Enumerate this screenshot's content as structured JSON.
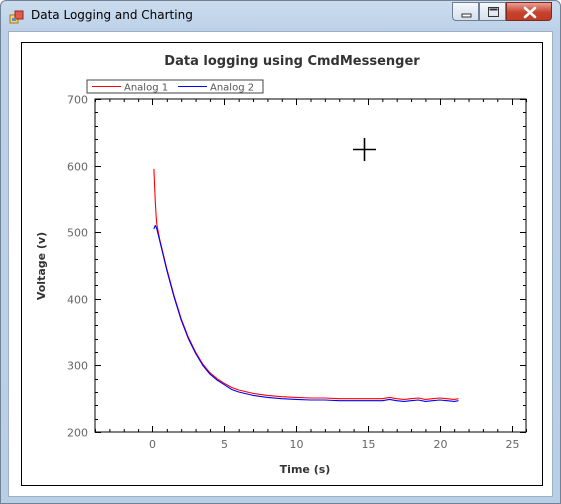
{
  "window": {
    "title": "Data Logging and Charting",
    "app_icon": "windows-forms-app-icon",
    "controls": [
      "minimize-icon",
      "maximize-icon",
      "close-icon"
    ]
  },
  "cursor": {
    "icon": "crosshair-cursor-icon"
  },
  "chart_data": {
    "type": "line",
    "title": "Data logging using CmdMessenger",
    "xlabel": "Time (s)",
    "ylabel": "Voltage (v)",
    "xlim": [
      -4,
      26
    ],
    "ylim": [
      200,
      700
    ],
    "xticks": [
      0,
      5,
      10,
      15,
      20,
      25
    ],
    "yticks": [
      200,
      300,
      400,
      500,
      600,
      700
    ],
    "xtick_labels": [
      "0",
      "5",
      "10",
      "15",
      "20",
      "25"
    ],
    "ytick_labels": [
      "200",
      "300",
      "400",
      "500",
      "600",
      "700"
    ],
    "x_minor_step": 1,
    "y_minor_step": 20,
    "grid": false,
    "legend_position": "top-left",
    "series": [
      {
        "name": "Analog 1",
        "color": "#ff0000",
        "x": [
          0.1,
          0.15,
          0.2,
          0.25,
          0.3,
          0.5,
          1.0,
          1.5,
          2.0,
          2.5,
          3.0,
          3.5,
          4.0,
          4.5,
          5.0,
          5.5,
          6.0,
          7.0,
          8.0,
          9.0,
          10.0,
          11.0,
          12.0,
          13.0,
          14.0,
          15.0,
          16.0,
          16.5,
          17.0,
          17.5,
          18.0,
          18.5,
          19.0,
          19.5,
          20.0,
          20.5,
          21.0,
          21.3
        ],
        "y": [
          595,
          570,
          545,
          525,
          512,
          490,
          445,
          405,
          370,
          342,
          320,
          302,
          289,
          280,
          273,
          267,
          263,
          258,
          255,
          253,
          252,
          251,
          251,
          250,
          250,
          250,
          250,
          252,
          250,
          249,
          250,
          251,
          249,
          250,
          251,
          250,
          249,
          250
        ]
      },
      {
        "name": "Analog 2",
        "color": "#0000ff",
        "x": [
          0.1,
          0.15,
          0.2,
          0.25,
          0.3,
          0.5,
          1.0,
          1.5,
          2.0,
          2.5,
          3.0,
          3.5,
          4.0,
          4.5,
          5.0,
          5.5,
          6.0,
          7.0,
          8.0,
          9.0,
          10.0,
          11.0,
          12.0,
          13.0,
          14.0,
          15.0,
          16.0,
          16.5,
          17.0,
          17.5,
          18.0,
          18.5,
          19.0,
          19.5,
          20.0,
          20.5,
          21.0,
          21.3
        ],
        "y": [
          505,
          508,
          510,
          508,
          505,
          488,
          443,
          403,
          368,
          340,
          318,
          300,
          287,
          278,
          271,
          264,
          260,
          255,
          252,
          250,
          249,
          248,
          248,
          247,
          247,
          247,
          247,
          249,
          247,
          246,
          247,
          248,
          246,
          247,
          248,
          247,
          246,
          247
        ]
      }
    ]
  }
}
